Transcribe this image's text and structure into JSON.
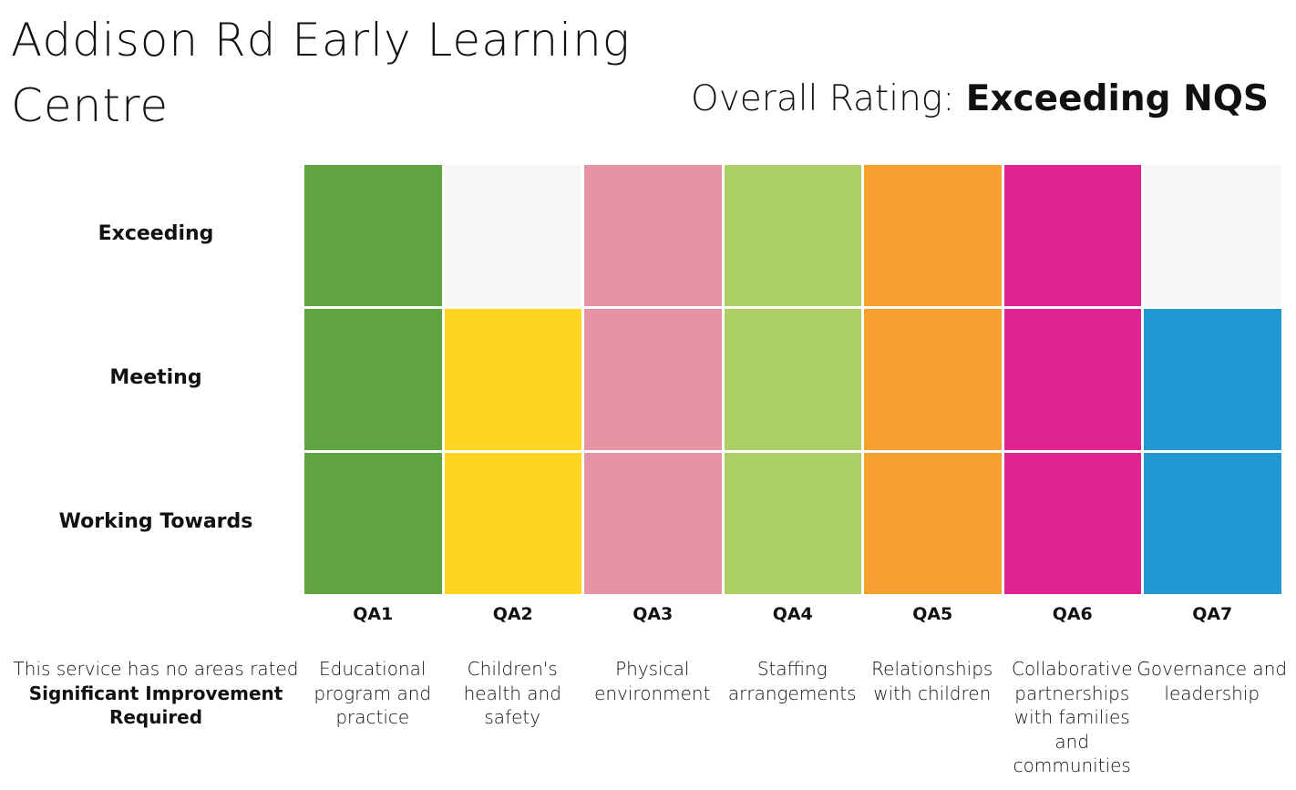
{
  "header": {
    "title": "Addison Rd Early Learning Centre",
    "overall_prefix": "Overall Rating:",
    "overall_value": "Exceeding NQS"
  },
  "note": {
    "text": "This service has no areas rated",
    "bold": "Significant Improvement Required"
  },
  "chart_data": {
    "type": "heatmap",
    "rows": [
      "Exceeding",
      "Meeting",
      "Working Towards"
    ],
    "empty_color": "#f6f6f6",
    "categories": [
      {
        "code": "QA1",
        "label": "Educational program and practice",
        "rating": "Exceeding",
        "color": "#5fa441"
      },
      {
        "code": "QA2",
        "label": "Children's health and safety",
        "rating": "Meeting",
        "color": "#ffd520"
      },
      {
        "code": "QA3",
        "label": "Physical environment",
        "rating": "Exceeding",
        "color": "#e693a6"
      },
      {
        "code": "QA4",
        "label": "Staffing arrangements",
        "rating": "Exceeding",
        "color": "#accf66"
      },
      {
        "code": "QA5",
        "label": "Relationships with children",
        "rating": "Exceeding",
        "color": "#f6a030"
      },
      {
        "code": "QA6",
        "label": "Collaborative partnerships with families and communities",
        "rating": "Exceeding",
        "color": "#e0238f"
      },
      {
        "code": "QA7",
        "label": "Governance and leadership",
        "rating": "Meeting",
        "color": "#2298d3"
      }
    ]
  }
}
